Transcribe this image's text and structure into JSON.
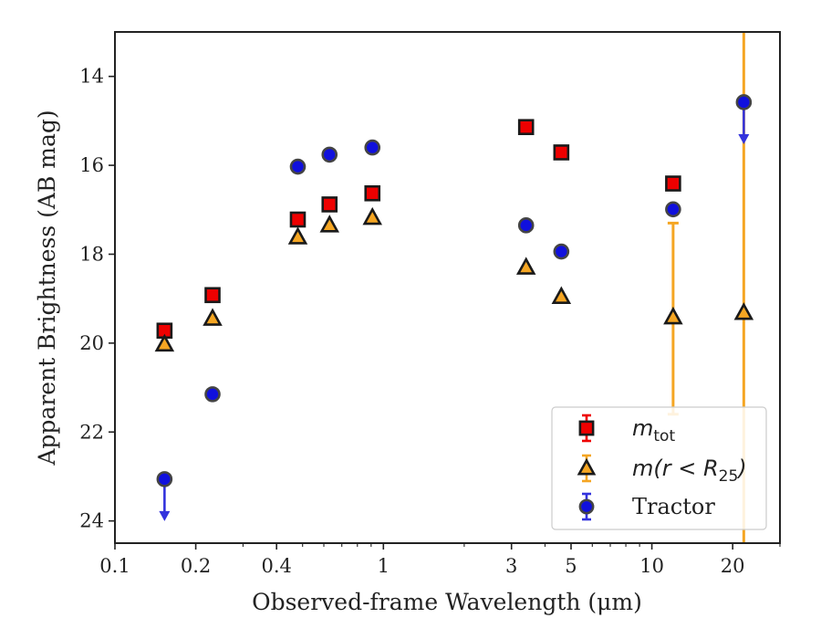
{
  "chart_data": {
    "type": "scatter",
    "title": "",
    "xlabel": "Observed-frame Wavelength (μm)",
    "ylabel": "Apparent Brightness (AB mag)",
    "xscale": "log",
    "xlim": [
      0.1,
      30
    ],
    "ylim": [
      24.5,
      13
    ],
    "y_inverted": true,
    "grid": false,
    "legend_position": "lower-right",
    "x_ticks": [
      {
        "value": 0.1,
        "label": "0.1"
      },
      {
        "value": 0.2,
        "label": "0.2"
      },
      {
        "value": 0.4,
        "label": "0.4"
      },
      {
        "value": 1,
        "label": "1"
      },
      {
        "value": 3,
        "label": "3"
      },
      {
        "value": 5,
        "label": "5"
      },
      {
        "value": 10,
        "label": "10"
      },
      {
        "value": 20,
        "label": "20"
      }
    ],
    "y_ticks": [
      {
        "value": 14,
        "label": "14"
      },
      {
        "value": 16,
        "label": "16"
      },
      {
        "value": 18,
        "label": "18"
      },
      {
        "value": 20,
        "label": "20"
      },
      {
        "value": 22,
        "label": "22"
      },
      {
        "value": 24,
        "label": "24"
      }
    ],
    "series": [
      {
        "name": "m_tot",
        "legend_main": "m",
        "legend_sub": "tot",
        "marker": "square",
        "color": "#ee0000",
        "edge": "#1a1a1a",
        "points": [
          {
            "x": 0.153,
            "y": 19.72
          },
          {
            "x": 0.231,
            "y": 18.92
          },
          {
            "x": 0.48,
            "y": 17.22
          },
          {
            "x": 0.63,
            "y": 16.88
          },
          {
            "x": 0.91,
            "y": 16.63
          },
          {
            "x": 3.4,
            "y": 15.14
          },
          {
            "x": 4.6,
            "y": 15.71
          },
          {
            "x": 12.0,
            "y": 16.41
          }
        ]
      },
      {
        "name": "m(r < R25)",
        "legend_main": "m(r < R",
        "legend_sub": "25",
        "legend_tail": ")",
        "marker": "triangle",
        "color": "#f5a623",
        "edge": "#1a1a1a",
        "errcolor": "#f5a623",
        "points": [
          {
            "x": 0.153,
            "y": 20.03
          },
          {
            "x": 0.231,
            "y": 19.45
          },
          {
            "x": 0.48,
            "y": 17.62
          },
          {
            "x": 0.63,
            "y": 17.35
          },
          {
            "x": 0.91,
            "y": 17.18
          },
          {
            "x": 3.4,
            "y": 18.3
          },
          {
            "x": 4.6,
            "y": 18.96
          },
          {
            "x": 12.0,
            "y": 19.42,
            "err": [
              17.3,
              21.6
            ]
          },
          {
            "x": 22.0,
            "y": 19.32,
            "err": [
              13.0,
              24.5
            ]
          }
        ]
      },
      {
        "name": "Tractor",
        "marker": "circle",
        "color": "#1010dd",
        "edge": "#444444",
        "errcolor": "#3333dd",
        "points": [
          {
            "x": 0.153,
            "y": 23.06,
            "upper_limit": true
          },
          {
            "x": 0.231,
            "y": 21.15
          },
          {
            "x": 0.48,
            "y": 16.03
          },
          {
            "x": 0.63,
            "y": 15.76
          },
          {
            "x": 0.91,
            "y": 15.6
          },
          {
            "x": 3.4,
            "y": 17.35
          },
          {
            "x": 4.6,
            "y": 17.94
          },
          {
            "x": 12.0,
            "y": 16.99
          },
          {
            "x": 22.0,
            "y": 14.58,
            "upper_limit": true
          }
        ]
      }
    ]
  }
}
